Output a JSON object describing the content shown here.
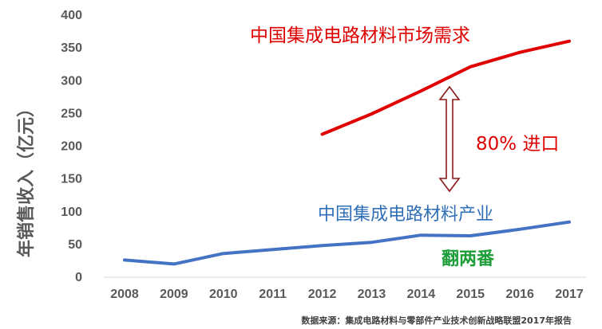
{
  "chart_data": {
    "type": "line",
    "categories": [
      "2008",
      "2009",
      "2010",
      "2011",
      "2012",
      "2013",
      "2014",
      "2015",
      "2016",
      "2017"
    ],
    "series": [
      {
        "name": "中国集成电路材料市场需求",
        "color": "#e00000",
        "values": [
          null,
          null,
          null,
          null,
          217,
          248,
          283,
          320,
          342,
          359
        ]
      },
      {
        "name": "中国集成电路材料产业",
        "color": "#4472c4",
        "values": [
          25,
          19,
          35,
          41,
          47,
          52,
          63,
          62,
          72,
          83
        ]
      }
    ],
    "ylabel": "年销售收入（亿元）",
    "ylim": [
      0,
      400
    ],
    "yticks": [
      0,
      50,
      100,
      150,
      200,
      250,
      300,
      350,
      400
    ],
    "grid": false,
    "annotations": {
      "gap_label": "80% 进口",
      "growth_label": "翻两番"
    },
    "arrow_color": "#8b1a1a",
    "source": "数据来源：集成电路材料与零部件产业技术创新战略联盟2017年报告"
  }
}
